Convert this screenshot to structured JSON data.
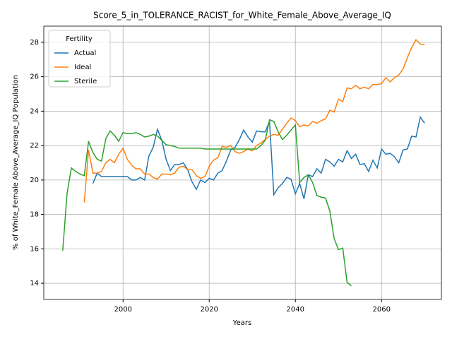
{
  "chart_data": {
    "type": "line",
    "title": "Score_5_in_TOLERANCE_RACIST_for_White_Female_Above_Average_IQ",
    "xlabel": "Years",
    "ylabel": "% of White_Female Above_Average_IQ Population",
    "legend_title": "Fertility",
    "legend_loc": "upper left",
    "grid": true,
    "x": [
      1986,
      1987,
      1988,
      1989,
      1990,
      1991,
      1992,
      1993,
      1994,
      1995,
      1996,
      1997,
      1998,
      1999,
      2000,
      2001,
      2002,
      2003,
      2004,
      2005,
      2006,
      2007,
      2008,
      2009,
      2010,
      2011,
      2012,
      2013,
      2014,
      2015,
      2016,
      2017,
      2018,
      2019,
      2020,
      2021,
      2022,
      2023,
      2024,
      2025,
      2026,
      2027,
      2028,
      2029,
      2030,
      2031,
      2032,
      2033,
      2034,
      2035,
      2036,
      2037,
      2038,
      2039,
      2040,
      2041,
      2042,
      2043,
      2044,
      2045,
      2046,
      2047,
      2048,
      2049,
      2050,
      2051,
      2052,
      2053,
      2054,
      2055,
      2056,
      2057,
      2058,
      2059,
      2060,
      2061,
      2062,
      2063,
      2064,
      2065,
      2066,
      2067,
      2068,
      2069,
      2070
    ],
    "xlim": [
      1981.6,
      2073.9
    ],
    "xticks": [
      2000,
      2020,
      2040,
      2060
    ],
    "ylim": [
      13.06,
      28.94
    ],
    "yticks": [
      14,
      16,
      18,
      20,
      22,
      24,
      26,
      28
    ],
    "series": [
      {
        "name": "Actual",
        "color": "#1f77b4",
        "values": [
          null,
          null,
          null,
          null,
          null,
          null,
          null,
          19.8,
          20.4,
          20.2,
          20.2,
          20.2,
          20.2,
          20.2,
          20.2,
          20.2,
          20.0,
          20.0,
          20.15,
          20.0,
          21.4,
          21.9,
          22.95,
          22.3,
          21.2,
          20.55,
          20.9,
          20.9,
          21.0,
          20.6,
          19.9,
          19.45,
          20.0,
          19.85,
          20.1,
          20.0,
          20.4,
          20.55,
          21.1,
          21.75,
          21.9,
          22.35,
          22.9,
          22.5,
          22.2,
          22.85,
          22.8,
          22.8,
          23.4,
          19.15,
          19.55,
          19.8,
          20.15,
          20.05,
          19.2,
          19.8,
          18.9,
          20.3,
          20.2,
          20.65,
          20.4,
          21.2,
          21.05,
          20.8,
          21.2,
          21.05,
          21.7,
          21.25,
          21.5,
          20.9,
          20.95,
          20.5,
          21.15,
          20.7,
          21.8,
          21.5,
          21.55,
          21.35,
          21.0,
          21.75,
          21.8,
          22.55,
          22.5,
          23.65,
          23.3
        ]
      },
      {
        "name": "Ideal",
        "color": "#ff7f0e",
        "values": [
          null,
          null,
          null,
          null,
          null,
          18.7,
          21.75,
          20.4,
          20.4,
          20.5,
          21.0,
          21.2,
          21.0,
          21.5,
          21.85,
          21.2,
          20.85,
          20.65,
          20.65,
          20.35,
          20.35,
          20.15,
          20.05,
          20.35,
          20.35,
          20.3,
          20.4,
          20.75,
          20.8,
          20.6,
          20.6,
          20.25,
          20.1,
          20.2,
          20.8,
          21.15,
          21.3,
          21.95,
          21.9,
          22.0,
          21.65,
          21.55,
          21.65,
          21.8,
          21.7,
          22.0,
          22.15,
          22.35,
          22.55,
          22.65,
          22.6,
          22.95,
          23.3,
          23.6,
          23.45,
          23.1,
          23.2,
          23.15,
          23.4,
          23.3,
          23.45,
          23.55,
          24.05,
          23.95,
          24.7,
          24.55,
          25.35,
          25.3,
          25.5,
          25.3,
          25.4,
          25.3,
          25.55,
          25.55,
          25.6,
          25.95,
          25.7,
          25.95,
          26.1,
          26.45,
          27.1,
          27.7,
          28.15,
          27.9,
          27.85
        ]
      },
      {
        "name": "Sterile",
        "color": "#2ca02c",
        "values": [
          15.9,
          19.2,
          20.7,
          20.5,
          20.35,
          20.25,
          22.25,
          21.6,
          21.2,
          21.1,
          22.4,
          22.85,
          22.6,
          22.25,
          22.75,
          22.7,
          22.7,
          22.75,
          22.65,
          22.5,
          22.55,
          22.65,
          22.55,
          22.3,
          22.05,
          22.0,
          21.95,
          21.85,
          21.85,
          21.85,
          21.85,
          21.85,
          21.85,
          21.8,
          21.8,
          21.8,
          21.8,
          21.8,
          21.8,
          21.8,
          21.8,
          21.8,
          21.8,
          21.8,
          21.8,
          21.8,
          22.0,
          22.3,
          23.5,
          23.4,
          22.8,
          22.35,
          22.6,
          22.9,
          23.2,
          19.85,
          20.15,
          20.3,
          19.85,
          19.1,
          19.0,
          18.95,
          18.2,
          16.6,
          15.95,
          16.05,
          14.05,
          13.85,
          null,
          null,
          null,
          null,
          null,
          null,
          null,
          null,
          null,
          null,
          null,
          null,
          null,
          null,
          null,
          null,
          null
        ]
      }
    ]
  }
}
